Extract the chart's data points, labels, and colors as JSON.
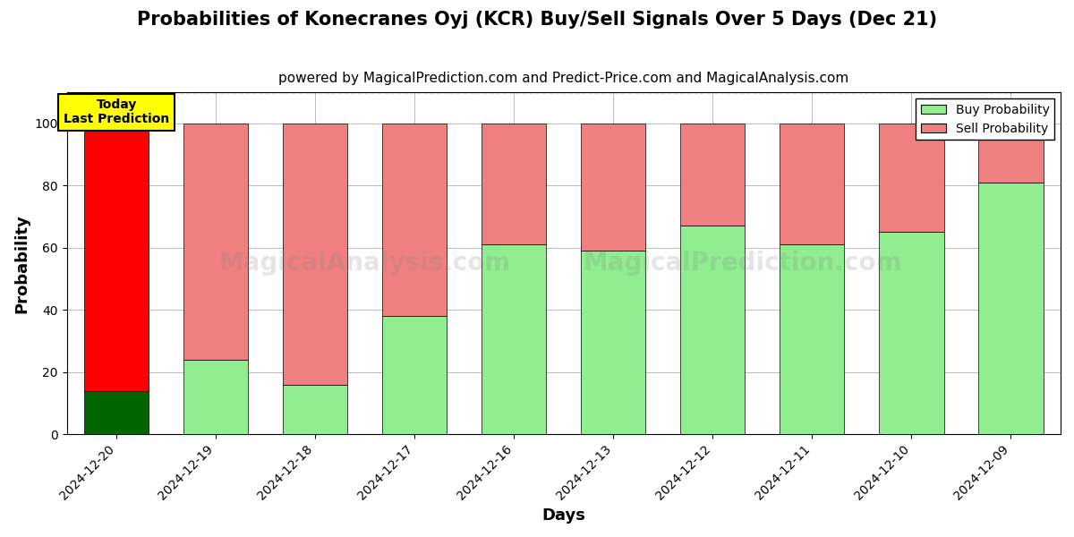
{
  "title": "Probabilities of Konecranes Oyj (KCR) Buy/Sell Signals Over 5 Days (Dec 21)",
  "subtitle": "powered by MagicalPrediction.com and Predict-Price.com and MagicalAnalysis.com",
  "xlabel": "Days",
  "ylabel": "Probability",
  "categories": [
    "2024-12-20",
    "2024-12-19",
    "2024-12-18",
    "2024-12-17",
    "2024-12-16",
    "2024-12-13",
    "2024-12-12",
    "2024-12-11",
    "2024-12-10",
    "2024-12-09"
  ],
  "buy_values": [
    14,
    24,
    16,
    38,
    61,
    59,
    67,
    61,
    65,
    81
  ],
  "sell_values": [
    86,
    76,
    84,
    62,
    39,
    41,
    33,
    39,
    35,
    19
  ],
  "buy_color_today": "#006400",
  "sell_color_today": "#ff0000",
  "buy_color": "#90EE90",
  "sell_color": "#F08080",
  "today_annotation": "Today\nLast Prediction",
  "annotation_bg": "#ffff00",
  "ylim": [
    0,
    110
  ],
  "dashed_line_y": 110,
  "legend_buy": "Buy Probability",
  "legend_sell": "Sell Probability",
  "watermark1": "MagicalAnalysis.com",
  "watermark2": "MagicalPrediction.com",
  "background_color": "#ffffff",
  "grid_color": "#bbbbbb",
  "title_fontsize": 15,
  "subtitle_fontsize": 11,
  "axis_label_fontsize": 13,
  "tick_fontsize": 10
}
